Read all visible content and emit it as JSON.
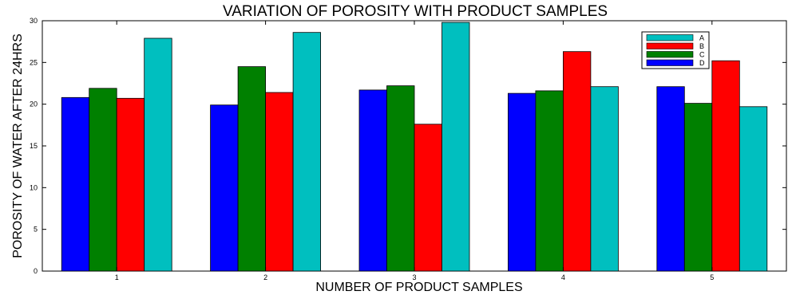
{
  "chart_data": {
    "type": "bar",
    "title": "VARIATION OF POROSITY WITH PRODUCT SAMPLES",
    "xlabel": "NUMBER OF PRODUCT SAMPLES",
    "ylabel": "POROSITY OF WATER AFTER 24HRS",
    "categories": [
      "1",
      "2",
      "3",
      "4",
      "5"
    ],
    "ylim": [
      0,
      30
    ],
    "yticks": [
      "0",
      "5",
      "10",
      "15",
      "20",
      "25",
      "30"
    ],
    "grid": false,
    "legend_position": "top-right",
    "series": [
      {
        "name": "D",
        "color": "#0000ff",
        "values": [
          20.8,
          19.9,
          21.7,
          21.3,
          22.1
        ]
      },
      {
        "name": "C",
        "color": "#008000",
        "values": [
          21.9,
          24.5,
          22.2,
          21.6,
          20.1
        ]
      },
      {
        "name": "B",
        "color": "#ff0000",
        "values": [
          20.7,
          21.4,
          17.6,
          26.3,
          25.2
        ]
      },
      {
        "name": "A",
        "color": "#00bfbf",
        "values": [
          27.9,
          28.6,
          29.8,
          22.1,
          19.7
        ]
      }
    ],
    "legend_order": [
      "A",
      "B",
      "C",
      "D"
    ]
  }
}
